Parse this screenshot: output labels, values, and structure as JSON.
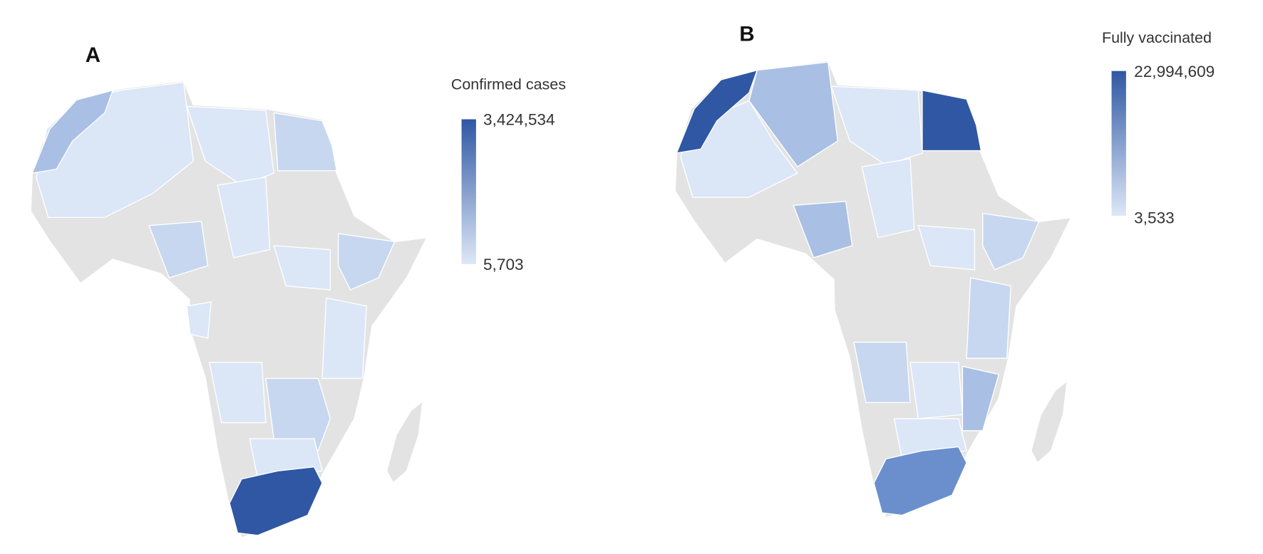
{
  "panels": [
    {
      "label": "A",
      "legend": {
        "title": "Confirmed cases",
        "max": "3,424,534",
        "min": "5,703"
      }
    },
    {
      "label": "B",
      "legend": {
        "title": "Fully vaccinated",
        "max": "22,994,609",
        "min": "3,533"
      }
    }
  ]
}
